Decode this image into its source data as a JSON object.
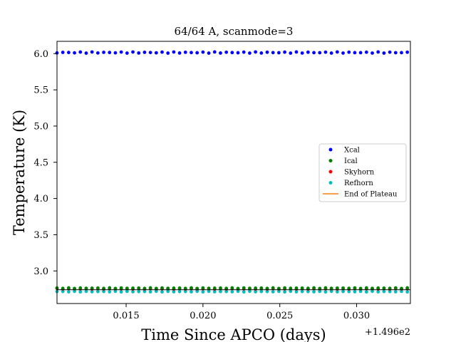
{
  "chart_data": {
    "type": "scatter",
    "title": "64/64 A, scanmode=3",
    "xlabel": "Time Since APCO (days)",
    "ylabel": "Temperature (K)",
    "x_offset_label": "+1.496e2",
    "xlim": [
      149.6105,
      149.6335
    ],
    "ylim": [
      2.55,
      6.17
    ],
    "x_ticks": [
      149.615,
      149.62,
      149.625,
      149.63
    ],
    "x_tick_labels": [
      "0.015",
      "0.020",
      "0.025",
      "0.030"
    ],
    "y_ticks": [
      3.0,
      3.5,
      4.0,
      4.5,
      5.0,
      5.5,
      6.0
    ],
    "y_tick_labels": [
      "3.0",
      "3.5",
      "4.0",
      "4.5",
      "5.0",
      "5.5",
      "6.0"
    ],
    "grid": false,
    "legend_position": "center-right",
    "x_start": 149.6105,
    "x_step": 0.00038,
    "n_points": 61,
    "series": [
      {
        "name": "Xcal",
        "color": "#0000ff",
        "marker": "point",
        "mean": 6.015,
        "jitter": 0.008
      },
      {
        "name": "Ical",
        "color": "#008000",
        "marker": "point",
        "mean": 2.762,
        "jitter": 0.004
      },
      {
        "name": "Skyhorn",
        "color": "#ff0000",
        "marker": "point",
        "mean": 2.755,
        "jitter": 0.004
      },
      {
        "name": "Refhorn",
        "color": "#00bfbf",
        "marker": "point",
        "mean": 2.715,
        "jitter": 0.004
      },
      {
        "name": "End of Plateau",
        "color": "#ff7f0e",
        "marker": "line"
      }
    ],
    "black_band": {
      "y_top": 2.745,
      "y_bottom": 2.735
    }
  }
}
